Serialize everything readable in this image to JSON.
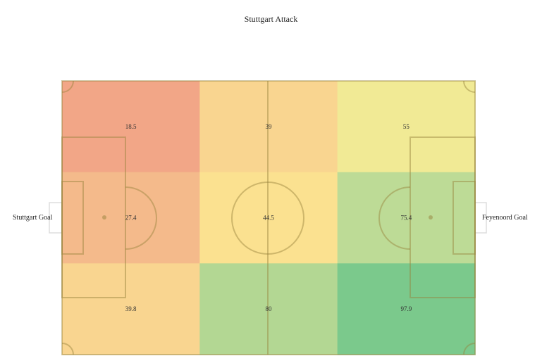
{
  "title": "Stuttgart Attack",
  "left_label": "Stuttgart Goal",
  "right_label": "Feyenoord Goal",
  "chart_data": {
    "type": "heatmap",
    "title": "Stuttgart Attack",
    "rows": 3,
    "cols": 3,
    "values": [
      [
        18.5,
        39,
        55
      ],
      [
        27.4,
        44.5,
        75.4
      ],
      [
        39.8,
        80,
        97.9
      ]
    ],
    "labels": [
      [
        "18.5",
        "39",
        "55"
      ],
      [
        "27.4",
        "44.5",
        "75.4"
      ],
      [
        "39.8",
        "80",
        "97.9"
      ]
    ],
    "colors": [
      [
        "#f2a687",
        "#f9d590",
        "#f1ea95"
      ],
      [
        "#f4ba8b",
        "#fbe190",
        "#bddb96"
      ],
      [
        "#f9d590",
        "#b3d793",
        "#7bc98c"
      ]
    ]
  }
}
